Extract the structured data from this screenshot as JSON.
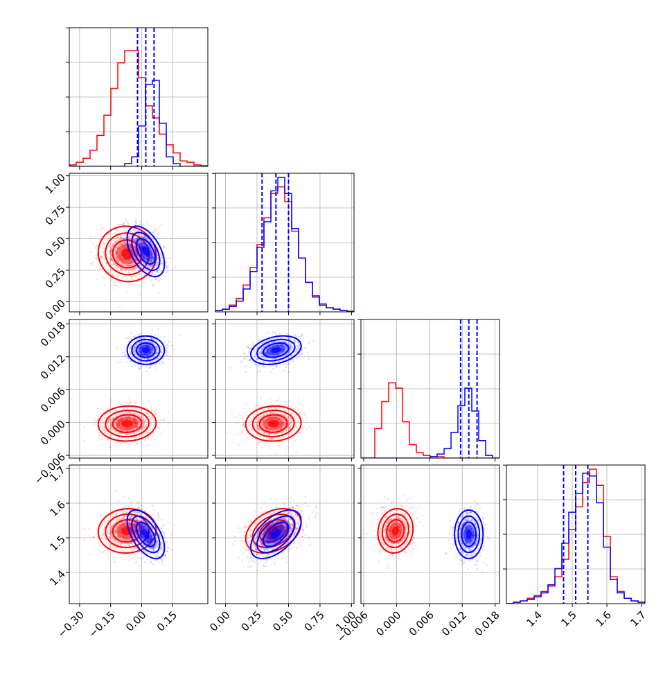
{
  "chart_data": {
    "type": "corner",
    "colors": {
      "series_a": "#ff0000",
      "series_b": "#0000ff",
      "quantile_line": "#0000ff",
      "grid": "#b0b0b0"
    },
    "grid": true,
    "parameters": [
      {
        "range": [
          -0.35,
          0.32
        ],
        "ticks": [
          "−0.30",
          "−0.15",
          "0.00",
          "0.15"
        ],
        "tick_values": [
          -0.3,
          -0.15,
          0.0,
          0.15
        ]
      },
      {
        "range": [
          -0.08,
          1.02
        ],
        "ticks": [
          "0.00",
          "0.25",
          "0.50",
          "0.75",
          "1.00"
        ],
        "tick_values": [
          0.0,
          0.25,
          0.5,
          0.75,
          1.0
        ]
      },
      {
        "range": [
          -0.0065,
          0.0188
        ],
        "ticks": [
          "−0.006",
          "0.000",
          "0.006",
          "0.012",
          "0.018"
        ],
        "tick_values": [
          -0.006,
          0.0,
          0.006,
          0.012,
          0.018
        ]
      },
      {
        "range": [
          1.31,
          1.71
        ],
        "ticks": [
          "1.4",
          "1.5",
          "1.6",
          "1.7"
        ],
        "tick_values": [
          1.4,
          1.5,
          1.6,
          1.7
        ]
      }
    ],
    "series": [
      {
        "color": "#ff0000",
        "means": [
          -0.07,
          0.38,
          -0.0002,
          1.52
        ],
        "sds": [
          0.07,
          0.11,
          0.0016,
          0.032
        ],
        "corr": [
          [
            1,
            -0.05,
            0.05,
            0.05
          ],
          [
            -0.05,
            1,
            0.05,
            0.35
          ],
          [
            0.05,
            0.05,
            1,
            0.1
          ],
          [
            0.05,
            0.35,
            0.1,
            1
          ]
        ],
        "hist": [
          [
            0.01,
            0.03,
            0.06,
            0.12,
            0.23,
            0.38,
            0.58,
            0.77,
            0.86,
            0.86,
            0.66,
            0.45,
            0.36,
            0.24,
            0.16,
            0.1,
            0.04,
            0.03,
            0.01,
            0.005
          ],
          [
            0.01,
            0.02,
            0.05,
            0.1,
            0.2,
            0.33,
            0.5,
            0.7,
            0.88,
            0.93,
            0.82,
            0.6,
            0.4,
            0.22,
            0.12,
            0.06,
            0.03,
            0.02,
            0.01,
            0.005
          ],
          [
            0.0,
            0.0,
            0.22,
            0.42,
            0.56,
            0.52,
            0.27,
            0.1,
            0.04,
            0.02,
            0.01,
            0.01,
            0.0,
            0.0,
            0.0,
            0.0,
            0.0,
            0.0,
            0.0,
            0.0
          ],
          [
            0.0,
            0.01,
            0.02,
            0.04,
            0.06,
            0.09,
            0.13,
            0.2,
            0.33,
            0.55,
            0.72,
            0.9,
            1.0,
            0.88,
            0.5,
            0.2,
            0.09,
            0.04,
            0.02,
            0.01
          ]
        ]
      },
      {
        "color": "#0000ff",
        "means": [
          0.02,
          0.4,
          0.0132,
          1.51
        ],
        "sds": [
          0.045,
          0.1,
          0.0013,
          0.035
        ],
        "corr": [
          [
            1,
            -0.5,
            0.0,
            -0.55
          ],
          [
            -0.5,
            1,
            0.3,
            0.55
          ],
          [
            0.0,
            0.3,
            1,
            0.0
          ],
          [
            -0.55,
            0.55,
            0.0,
            1
          ]
        ],
        "quantiles": [
          [
            -0.02,
            0.02,
            0.06
          ],
          [
            0.29,
            0.4,
            0.5
          ],
          [
            0.0117,
            0.0132,
            0.0147
          ],
          [
            1.475,
            1.51,
            1.545
          ]
        ],
        "hist": [
          [
            0.0,
            0.0,
            0.0,
            0.0,
            0.0,
            0.0,
            0.0,
            0.0,
            0.02,
            0.07,
            0.3,
            0.61,
            0.64,
            0.32,
            0.07,
            0.02,
            0.0,
            0.0,
            0.0,
            0.0
          ],
          [
            0.01,
            0.02,
            0.04,
            0.08,
            0.17,
            0.3,
            0.48,
            0.67,
            0.9,
            1.0,
            0.88,
            0.62,
            0.4,
            0.22,
            0.11,
            0.05,
            0.03,
            0.02,
            0.01,
            0.0
          ],
          [
            0.0,
            0.0,
            0.0,
            0.0,
            0.0,
            0.0,
            0.0,
            0.0,
            0.0,
            0.0,
            0.01,
            0.03,
            0.07,
            0.19,
            0.39,
            0.52,
            0.35,
            0.13,
            0.02,
            0.0
          ],
          [
            0.0,
            0.01,
            0.02,
            0.03,
            0.05,
            0.08,
            0.14,
            0.26,
            0.45,
            0.68,
            0.82,
            0.97,
            0.95,
            0.75,
            0.42,
            0.18,
            0.08,
            0.04,
            0.02,
            0.01
          ]
        ]
      }
    ]
  }
}
